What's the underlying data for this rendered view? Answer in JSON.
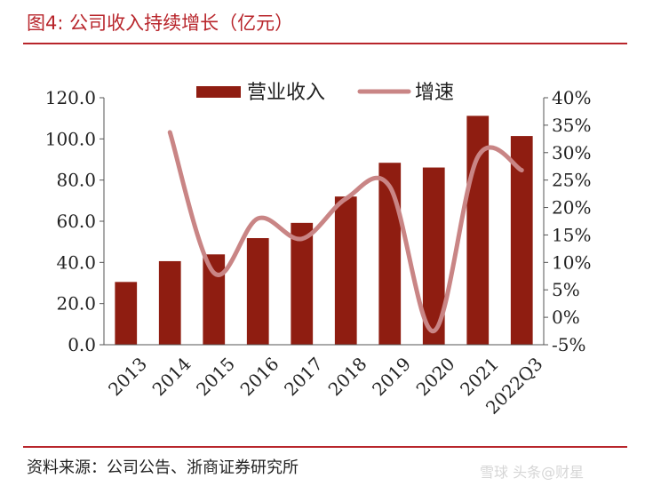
{
  "header": {
    "title": "图4:  公司收入持续增长（亿元）"
  },
  "footer": {
    "source": "资料来源：公司公告、浙商证券研究所",
    "watermark": "雪球 头条@财星"
  },
  "colors": {
    "bar": "#8f1d11",
    "line": "#c98585",
    "accent": "#b8252b"
  },
  "chart_data": {
    "type": "bar",
    "categories": [
      "2013",
      "2014",
      "2015",
      "2016",
      "2017",
      "2018",
      "2019",
      "2020",
      "2021",
      "2022Q3"
    ],
    "series": [
      {
        "name": "营业收入",
        "type": "bar",
        "axis": "left",
        "values": [
          30.5,
          40.6,
          43.9,
          51.8,
          59.2,
          72.0,
          88.4,
          86.1,
          111.2,
          101.4
        ]
      },
      {
        "name": "增速",
        "type": "line",
        "axis": "right",
        "values": [
          null,
          33.7,
          8.1,
          18.0,
          14.3,
          21.6,
          23.8,
          -2.5,
          29.2,
          26.8
        ]
      }
    ],
    "y_left": {
      "min": 0,
      "max": 120,
      "step": 20,
      "ticks": [
        "0.0",
        "20.0",
        "40.0",
        "60.0",
        "80.0",
        "100.0",
        "120.0"
      ]
    },
    "y_right": {
      "min": -5,
      "max": 40,
      "step": 5,
      "ticks": [
        "-5%",
        "0%",
        "5%",
        "10%",
        "15%",
        "20%",
        "25%",
        "30%",
        "35%",
        "40%"
      ]
    },
    "legend": "top-center",
    "grid": false
  }
}
